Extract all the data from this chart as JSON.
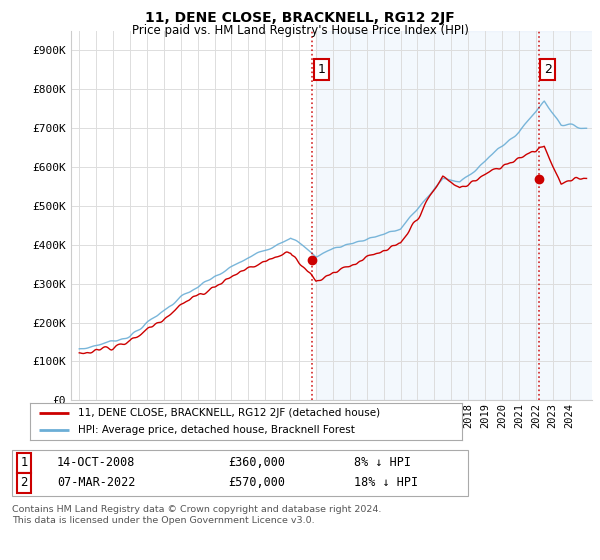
{
  "title": "11, DENE CLOSE, BRACKNELL, RG12 2JF",
  "subtitle": "Price paid vs. HM Land Registry's House Price Index (HPI)",
  "hpi_color": "#6baed6",
  "price_color": "#cc0000",
  "bg_shade_color": "#ddeeff",
  "legend_price_label": "11, DENE CLOSE, BRACKNELL, RG12 2JF (detached house)",
  "legend_hpi_label": "HPI: Average price, detached house, Bracknell Forest",
  "yticks": [
    0,
    100000,
    200000,
    300000,
    400000,
    500000,
    600000,
    700000,
    800000,
    900000
  ],
  "ytick_labels": [
    "£0",
    "£100K",
    "£200K",
    "£300K",
    "£400K",
    "£500K",
    "£600K",
    "£700K",
    "£800K",
    "£900K"
  ],
  "ylim": [
    0,
    950000
  ],
  "sale1_year": 2008.79,
  "sale1_price": 360000,
  "sale1_date": "14-OCT-2008",
  "sale1_pct": "8% ↓ HPI",
  "sale2_year": 2022.17,
  "sale2_price": 570000,
  "sale2_date": "07-MAR-2022",
  "sale2_pct": "18% ↓ HPI",
  "copyright": "Contains HM Land Registry data © Crown copyright and database right 2024.\nThis data is licensed under the Open Government Licence v3.0.",
  "background_color": "#ffffff",
  "grid_color": "#dddddd"
}
